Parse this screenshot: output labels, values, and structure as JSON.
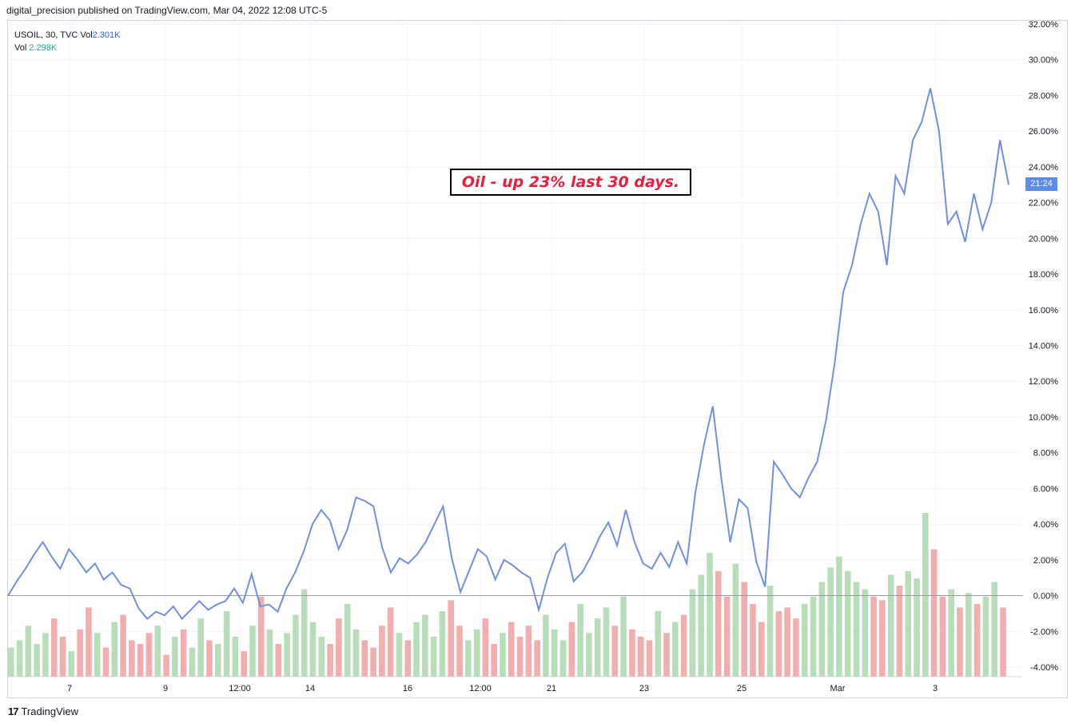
{
  "published": "digital_precision published on TradingView.com, Mar 04, 2022 12:08 UTC-5",
  "legend": {
    "symbol": "USOIL, 30, TVC",
    "vol_label": "Vol",
    "vol_value": "2.301K",
    "vol2_label": "Vol",
    "vol2_value": "2.298K"
  },
  "annotation": "Oil - up 23% last 30 days.",
  "price_tag": "21:24",
  "brand": "TradingView",
  "colors": {
    "line": "#6f8fe8",
    "vol_up": "#a5d6a7",
    "vol_down": "#ef9a9a",
    "grid": "#f0f3fa",
    "baseline": "#9598a1"
  },
  "chart_data": {
    "type": "line",
    "x_ticks": [
      "7",
      "9",
      "12:00",
      "14",
      "16",
      "12:00",
      "21",
      "23",
      "25",
      "Mar",
      "3"
    ],
    "y_ticks": [
      "32.00%",
      "30.00%",
      "28.00%",
      "26.00%",
      "24.00%",
      "22.00%",
      "20.00%",
      "18.00%",
      "16.00%",
      "14.00%",
      "12.00%",
      "10.00%",
      "8.00%",
      "6.00%",
      "4.00%",
      "2.00%",
      "0.00%",
      "-2.00%",
      "-4.00%"
    ],
    "ylim": [
      -4.5,
      32
    ],
    "series": [
      {
        "values": [
          0,
          0.8,
          1.5,
          2.3,
          3.0,
          2.2,
          1.5,
          2.6,
          2.0,
          1.3,
          1.8,
          0.9,
          1.3,
          0.6,
          0.4,
          -0.7,
          -1.3,
          -0.9,
          -1.1,
          -0.6,
          -1.3,
          -0.8,
          -0.3,
          -0.8,
          -0.5,
          -0.3,
          0.4,
          -0.4,
          1.2,
          -0.6,
          -0.5,
          -0.9,
          0.4,
          1.3,
          2.5,
          4.0,
          4.8,
          4.2,
          2.6,
          3.7,
          5.5,
          5.3,
          5.0,
          2.7,
          1.3,
          2.1,
          1.8,
          2.3,
          3.0,
          4.0,
          5.0,
          2.1,
          0.2,
          1.4,
          2.6,
          2.2,
          0.9,
          2.0,
          1.7,
          1.3,
          1.0,
          -0.8,
          1.0,
          2.4,
          2.9,
          0.8,
          1.3,
          2.2,
          3.3,
          4.1,
          2.8,
          4.8,
          3.0,
          1.8,
          1.5,
          2.4,
          1.6,
          3.0,
          1.8,
          5.8,
          8.5,
          10.6,
          6.5,
          3.0,
          5.4,
          4.9,
          1.9,
          0.5,
          7.5,
          6.8,
          6.0,
          5.5,
          6.6,
          7.5,
          9.8,
          13.0,
          17.0,
          18.5,
          20.8,
          22.5,
          21.5,
          18.5,
          23.5,
          22.5,
          25.5,
          26.5,
          28.4,
          26.0,
          20.8,
          21.5,
          19.8,
          22.5,
          20.5,
          22.0,
          25.5,
          23.0
        ]
      }
    ],
    "volume_values": [
      0.8,
      1.0,
      1.4,
      0.9,
      1.2,
      1.6,
      1.1,
      0.7,
      1.3,
      1.9,
      1.2,
      0.8,
      1.5,
      1.7,
      1.0,
      0.9,
      1.2,
      1.4,
      0.6,
      1.1,
      1.3,
      0.8,
      1.6,
      1.0,
      0.9,
      1.8,
      1.1,
      0.7,
      1.4,
      2.2,
      1.3,
      0.9,
      1.2,
      1.7,
      2.4,
      1.5,
      1.1,
      0.9,
      1.6,
      2.0,
      1.3,
      1.0,
      0.8,
      1.4,
      1.9,
      1.2,
      1.0,
      1.5,
      1.7,
      1.1,
      1.8,
      2.1,
      1.4,
      1.0,
      1.3,
      1.6,
      0.9,
      1.2,
      1.5,
      1.1,
      1.4,
      1.0,
      1.7,
      1.3,
      1.0,
      1.5,
      2.0,
      1.2,
      1.6,
      1.9,
      1.4,
      2.2,
      1.3,
      1.1,
      1.0,
      1.8,
      1.2,
      1.5,
      1.7,
      2.4,
      2.8,
      3.4,
      2.9,
      2.2,
      3.1,
      2.6,
      2.0,
      1.5,
      2.5,
      1.8,
      1.9,
      1.6,
      2.0,
      2.2,
      2.6,
      3.0,
      3.3,
      2.9,
      2.6,
      2.4,
      2.2,
      2.1,
      2.8,
      2.5,
      2.9,
      2.7,
      4.5,
      3.5,
      2.2,
      2.4,
      1.9,
      2.3,
      2.0,
      2.2,
      2.6,
      1.9
    ]
  }
}
